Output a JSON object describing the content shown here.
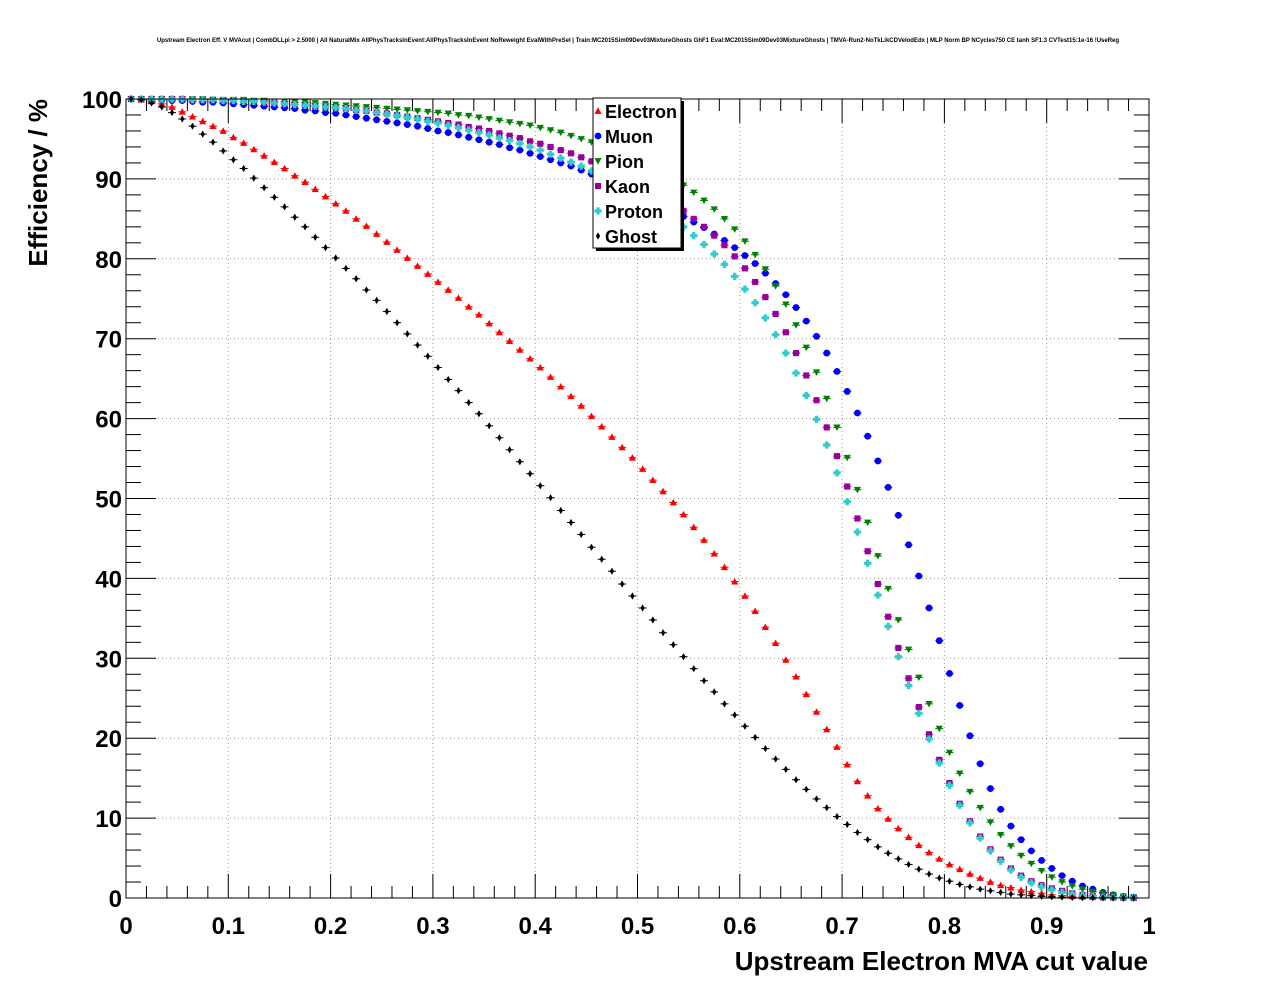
{
  "chart_data": {
    "type": "scatter",
    "title": "Upstream Electron Eff. V MVAcut | CombDLLpi > 2.5000 | All NaturalMix AllPhysTracksInEvent:AllPhysTracksInEvent NoReweight EvalWithPreSel | Train:MC2015Sim09Dev03MixtureGhosts GhF1 Eval:MC2015Sim09Dev03MixtureGhosts | TMVA-Run2-NoTkLikCDVelodEdx | MLP Norm BP NCycles750 CE tanh SF1.3 CVTest15:1e-16 !UseReg",
    "xlabel": "Upstream Electron MVA cut value",
    "ylabel": "Efficiency / %",
    "xlim": [
      0,
      1
    ],
    "ylim": [
      0,
      100
    ],
    "xticks": [
      0,
      0.1,
      0.2,
      0.3,
      0.4,
      0.5,
      0.6,
      0.7,
      0.8,
      0.9,
      1
    ],
    "xtick_labels": [
      "0",
      "0.1",
      "0.2",
      "0.3",
      "0.4",
      "0.5",
      "0.6",
      "0.7",
      "0.8",
      "0.9",
      "1"
    ],
    "yticks": [
      0,
      10,
      20,
      30,
      40,
      50,
      60,
      70,
      80,
      90,
      100
    ],
    "ytick_labels": [
      "0",
      "10",
      "20",
      "30",
      "40",
      "50",
      "60",
      "70",
      "80",
      "90",
      "100"
    ],
    "grid": true,
    "legend_position": "top-center",
    "x": [
      0.005,
      0.015,
      0.025,
      0.035,
      0.045,
      0.055,
      0.065,
      0.075,
      0.085,
      0.095,
      0.105,
      0.115,
      0.125,
      0.135,
      0.145,
      0.155,
      0.165,
      0.175,
      0.185,
      0.195,
      0.205,
      0.215,
      0.225,
      0.235,
      0.245,
      0.255,
      0.265,
      0.275,
      0.285,
      0.295,
      0.305,
      0.315,
      0.325,
      0.335,
      0.345,
      0.355,
      0.365,
      0.375,
      0.385,
      0.395,
      0.405,
      0.415,
      0.425,
      0.435,
      0.445,
      0.455,
      0.465,
      0.475,
      0.485,
      0.495,
      0.505,
      0.515,
      0.525,
      0.535,
      0.545,
      0.555,
      0.565,
      0.575,
      0.585,
      0.595,
      0.605,
      0.615,
      0.625,
      0.635,
      0.645,
      0.655,
      0.665,
      0.675,
      0.685,
      0.695,
      0.705,
      0.715,
      0.725,
      0.735,
      0.745,
      0.755,
      0.765,
      0.775,
      0.785,
      0.795,
      0.805,
      0.815,
      0.825,
      0.835,
      0.845,
      0.855,
      0.865,
      0.875,
      0.885,
      0.895,
      0.905,
      0.915,
      0.925,
      0.935,
      0.945,
      0.955,
      0.965,
      0.975,
      0.985
    ],
    "series": [
      {
        "name": "Electron",
        "color": "#ff0000",
        "marker": "triangle-up",
        "values": [
          100.0,
          99.9,
          99.7,
          99.4,
          99.0,
          98.4,
          97.8,
          97.2,
          96.6,
          96.0,
          95.2,
          94.5,
          93.7,
          92.9,
          92.1,
          91.3,
          90.4,
          89.6,
          88.7,
          87.8,
          86.9,
          86.0,
          85.0,
          84.1,
          83.1,
          82.1,
          81.1,
          80.1,
          79.1,
          78.1,
          77.1,
          76.1,
          75.1,
          74.0,
          73.0,
          71.9,
          70.8,
          69.7,
          68.6,
          67.5,
          66.4,
          65.2,
          64.0,
          62.8,
          61.6,
          60.3,
          59.0,
          57.7,
          56.4,
          55.1,
          53.7,
          52.3,
          50.9,
          49.5,
          48.0,
          46.4,
          44.8,
          43.1,
          41.4,
          39.6,
          37.8,
          35.9,
          33.9,
          31.9,
          29.8,
          27.7,
          25.5,
          23.3,
          21.1,
          18.9,
          16.7,
          14.6,
          12.8,
          11.2,
          9.9,
          8.7,
          7.6,
          6.6,
          5.7,
          4.9,
          4.2,
          3.6,
          3.0,
          2.5,
          2.0,
          1.6,
          1.3,
          1.0,
          0.8,
          0.6,
          0.4,
          0.3,
          0.2,
          0.15,
          0.1,
          0.07,
          0.05,
          0.03,
          0.01
        ]
      },
      {
        "name": "Muon",
        "color": "#0000ff",
        "marker": "circle",
        "values": [
          100.0,
          100.0,
          99.9,
          99.9,
          99.8,
          99.8,
          99.7,
          99.6,
          99.6,
          99.5,
          99.4,
          99.3,
          99.2,
          99.1,
          99.0,
          98.9,
          98.8,
          98.6,
          98.5,
          98.3,
          98.2,
          98.0,
          97.8,
          97.6,
          97.4,
          97.2,
          97.0,
          96.8,
          96.6,
          96.3,
          96.0,
          95.8,
          95.5,
          95.2,
          94.9,
          94.6,
          94.3,
          93.9,
          93.6,
          93.2,
          92.8,
          92.4,
          92.0,
          91.6,
          91.1,
          90.6,
          90.1,
          89.6,
          89.0,
          88.4,
          87.8,
          87.2,
          86.6,
          86.0,
          85.3,
          84.6,
          83.9,
          83.1,
          82.3,
          81.4,
          80.4,
          79.4,
          78.2,
          76.9,
          75.5,
          73.9,
          72.2,
          70.3,
          68.2,
          65.9,
          63.4,
          60.7,
          57.8,
          54.7,
          51.4,
          47.9,
          44.2,
          40.3,
          36.3,
          32.2,
          28.1,
          24.1,
          20.3,
          16.8,
          13.7,
          11.1,
          9.0,
          7.3,
          5.9,
          4.7,
          3.7,
          2.8,
          2.1,
          1.5,
          1.1,
          0.7,
          0.4,
          0.2,
          0.1
        ]
      },
      {
        "name": "Pion",
        "color": "#008000",
        "marker": "triangle-down",
        "values": [
          100.0,
          100.0,
          100.0,
          100.0,
          100.0,
          100.0,
          100.0,
          100.0,
          99.9,
          99.9,
          99.9,
          99.9,
          99.8,
          99.8,
          99.7,
          99.7,
          99.6,
          99.6,
          99.5,
          99.4,
          99.3,
          99.2,
          99.1,
          99.0,
          98.9,
          98.8,
          98.7,
          98.6,
          98.5,
          98.4,
          98.3,
          98.2,
          98.0,
          97.9,
          97.7,
          97.5,
          97.3,
          97.1,
          96.9,
          96.7,
          96.4,
          96.1,
          95.8,
          95.4,
          95.0,
          94.6,
          94.2,
          93.7,
          93.2,
          92.6,
          92.0,
          91.4,
          90.7,
          90.0,
          89.2,
          88.3,
          87.3,
          86.2,
          85.0,
          83.7,
          82.2,
          80.5,
          78.7,
          76.6,
          74.3,
          71.7,
          68.9,
          65.8,
          62.5,
          58.9,
          55.1,
          51.1,
          47.0,
          42.8,
          38.7,
          34.8,
          31.1,
          27.6,
          24.3,
          21.2,
          18.2,
          15.6,
          13.3,
          11.3,
          9.5,
          7.9,
          6.5,
          5.3,
          4.3,
          3.4,
          2.6,
          2.0,
          1.5,
          1.1,
          0.8,
          0.6,
          0.4,
          0.2,
          0.1
        ]
      },
      {
        "name": "Kaon",
        "color": "#990099",
        "marker": "square",
        "values": [
          100.0,
          100.0,
          100.0,
          100.0,
          100.0,
          100.0,
          99.9,
          99.9,
          99.9,
          99.8,
          99.8,
          99.7,
          99.7,
          99.6,
          99.5,
          99.4,
          99.3,
          99.2,
          99.1,
          99.0,
          98.9,
          98.8,
          98.6,
          98.5,
          98.3,
          98.2,
          98.0,
          97.8,
          97.6,
          97.4,
          97.2,
          97.0,
          96.8,
          96.5,
          96.3,
          96.0,
          95.7,
          95.4,
          95.1,
          94.7,
          94.4,
          94.0,
          93.6,
          93.2,
          92.7,
          92.2,
          91.7,
          91.1,
          90.5,
          89.9,
          89.2,
          88.5,
          87.7,
          86.9,
          86.0,
          85.0,
          84.0,
          82.9,
          81.7,
          80.3,
          78.8,
          77.1,
          75.2,
          73.1,
          70.8,
          68.2,
          65.4,
          62.3,
          58.9,
          55.3,
          51.5,
          47.5,
          43.4,
          39.3,
          35.2,
          31.3,
          27.5,
          23.9,
          20.5,
          17.3,
          14.4,
          11.8,
          9.6,
          7.7,
          6.1,
          4.8,
          3.7,
          2.8,
          2.1,
          1.6,
          1.2,
          0.9,
          0.6,
          0.4,
          0.3,
          0.2,
          0.1,
          0.05,
          0.02
        ]
      },
      {
        "name": "Proton",
        "color": "#33cccc",
        "marker": "cross",
        "values": [
          100.0,
          100.0,
          100.0,
          100.0,
          100.0,
          100.0,
          99.9,
          99.9,
          99.9,
          99.8,
          99.8,
          99.7,
          99.7,
          99.6,
          99.5,
          99.4,
          99.3,
          99.2,
          99.1,
          99.0,
          98.9,
          98.8,
          98.6,
          98.5,
          98.3,
          98.1,
          97.9,
          97.7,
          97.5,
          97.2,
          97.0,
          96.7,
          96.4,
          96.1,
          95.8,
          95.5,
          95.1,
          94.8,
          94.4,
          94.0,
          93.6,
          93.1,
          92.6,
          92.1,
          91.6,
          91.0,
          90.4,
          89.8,
          89.1,
          88.4,
          87.6,
          86.8,
          85.9,
          85.0,
          84.0,
          82.9,
          81.8,
          80.6,
          79.3,
          77.8,
          76.2,
          74.5,
          72.6,
          70.5,
          68.2,
          65.7,
          62.9,
          59.9,
          56.7,
          53.2,
          49.6,
          45.8,
          41.9,
          37.9,
          34.0,
          30.2,
          26.6,
          23.1,
          19.9,
          16.9,
          14.1,
          11.6,
          9.4,
          7.5,
          5.9,
          4.6,
          3.5,
          2.6,
          1.9,
          1.4,
          1.0,
          0.7,
          0.5,
          0.3,
          0.2,
          0.1,
          0.05,
          0.02,
          0.01
        ]
      },
      {
        "name": "Ghost",
        "color": "#000000",
        "marker": "diamond",
        "values": [
          100.0,
          99.9,
          99.5,
          99.0,
          98.3,
          97.5,
          96.6,
          95.6,
          94.6,
          93.5,
          92.4,
          91.3,
          90.1,
          88.9,
          87.7,
          86.5,
          85.2,
          84.0,
          82.7,
          81.4,
          80.1,
          78.8,
          77.5,
          76.1,
          74.8,
          73.4,
          72.0,
          70.6,
          69.2,
          67.8,
          66.4,
          64.9,
          63.5,
          62.0,
          60.6,
          59.1,
          57.6,
          56.1,
          54.6,
          53.1,
          51.6,
          50.1,
          48.5,
          47.0,
          45.5,
          43.9,
          42.4,
          40.9,
          39.3,
          37.8,
          36.3,
          34.8,
          33.2,
          31.7,
          30.2,
          28.7,
          27.2,
          25.8,
          24.3,
          22.9,
          21.5,
          20.1,
          18.7,
          17.4,
          16.1,
          14.8,
          13.6,
          12.4,
          11.3,
          10.2,
          9.2,
          8.2,
          7.3,
          6.4,
          5.6,
          4.9,
          4.2,
          3.6,
          3.0,
          2.5,
          2.1,
          1.7,
          1.4,
          1.1,
          0.9,
          0.7,
          0.5,
          0.4,
          0.3,
          0.2,
          0.15,
          0.1,
          0.07,
          0.05,
          0.03,
          0.02,
          0.01,
          0.0,
          0.0
        ]
      }
    ]
  }
}
